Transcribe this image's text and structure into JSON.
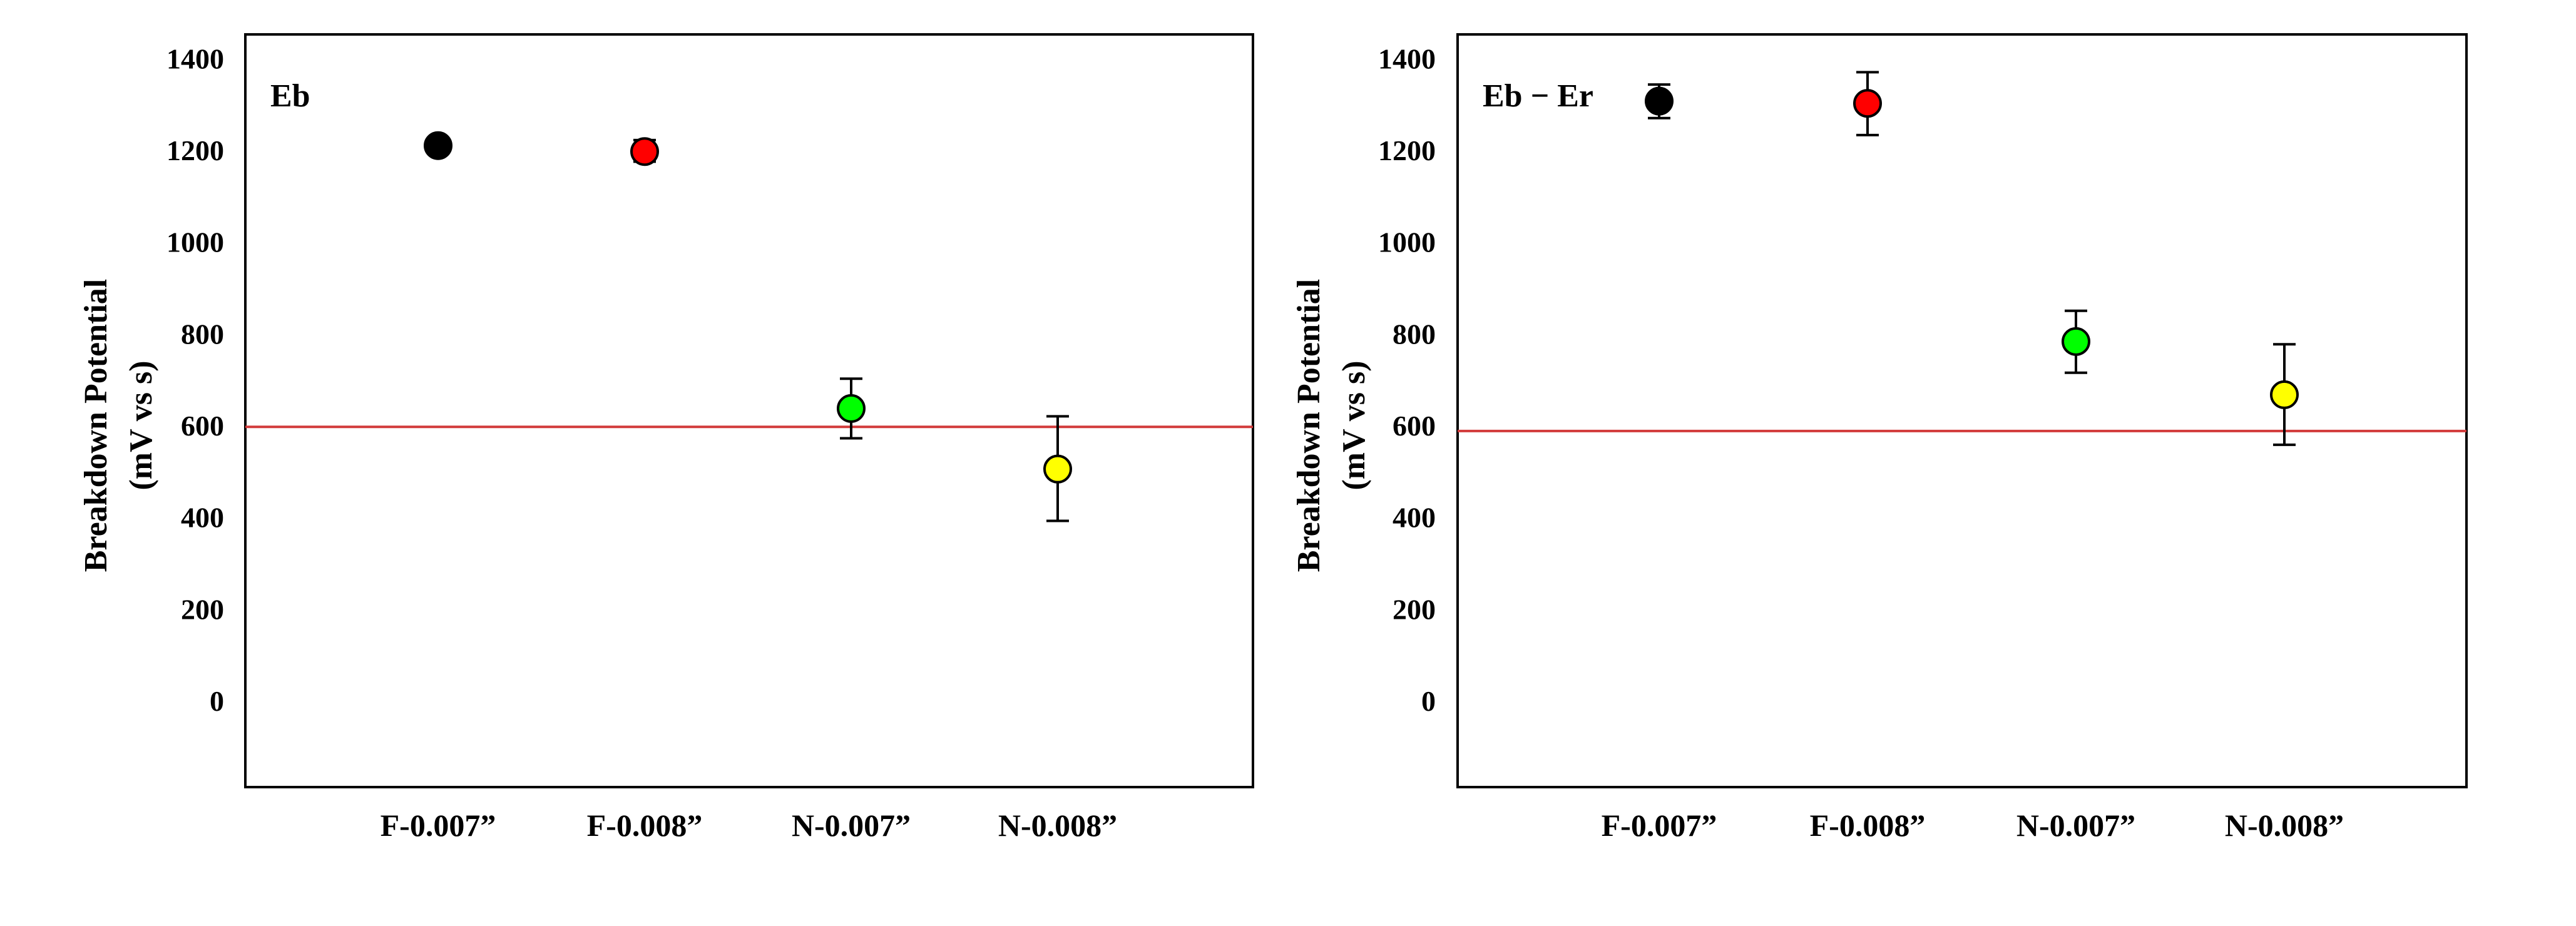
{
  "chart_data": [
    {
      "type": "scatter",
      "panel_label": "Eb",
      "ylabel": "Breakdown Potential",
      "ylabel_unit": "(mV vs s)",
      "categories": [
        "F-0.007”",
        "F-0.008”",
        "N-0.007”",
        "N-0.008”"
      ],
      "values": [
        1210,
        1197,
        637,
        505
      ],
      "errors": [
        [
          1210,
          1210
        ],
        [
          1175,
          1222
        ],
        [
          572,
          702
        ],
        [
          392,
          620
        ]
      ],
      "marker_colors": [
        "#000000",
        "#ff0000",
        "#00ff00",
        "#ffff00"
      ],
      "ylim": [
        -200,
        1450
      ],
      "yticks": [
        0,
        200,
        400,
        600,
        800,
        1000,
        1200,
        1400
      ],
      "reference_line": {
        "y": 597,
        "color": "#d23a3a"
      },
      "grid": false
    },
    {
      "type": "scatter",
      "panel_label": "Eb − Er",
      "ylabel": "Breakdown Potential",
      "ylabel_unit": "(mV vs s)",
      "categories": [
        "F-0.007”",
        "F-0.008”",
        "N-0.007”",
        "N-0.008”"
      ],
      "values": [
        1307,
        1302,
        783,
        667
      ],
      "errors": [
        [
          1270,
          1343
        ],
        [
          1233,
          1370
        ],
        [
          715,
          850
        ],
        [
          558,
          777
        ]
      ],
      "marker_colors": [
        "#000000",
        "#ff0000",
        "#00ff00",
        "#ffff00"
      ],
      "ylim": [
        -200,
        1450
      ],
      "yticks": [
        0,
        200,
        400,
        600,
        800,
        1000,
        1200,
        1400
      ],
      "reference_line": {
        "y": 588,
        "color": "#d23a3a"
      },
      "grid": false
    }
  ]
}
